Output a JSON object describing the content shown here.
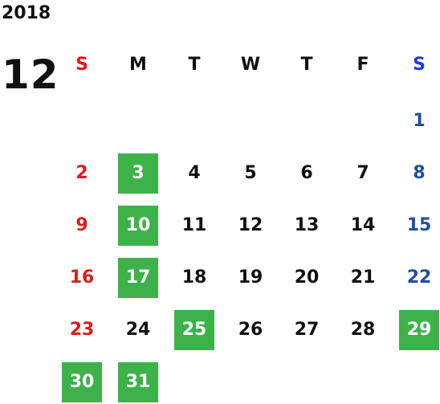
{
  "calendar": {
    "year": "2018",
    "month": "12",
    "weekday_headers": [
      "S",
      "M",
      "T",
      "W",
      "T",
      "F",
      "S"
    ],
    "days": [
      {
        "day": "1",
        "weekday": "sat",
        "row": 0,
        "highlight": false
      },
      {
        "day": "2",
        "weekday": "sun",
        "row": 1,
        "highlight": false
      },
      {
        "day": "3",
        "weekday": "mon",
        "row": 1,
        "highlight": true
      },
      {
        "day": "4",
        "weekday": "tue",
        "row": 1,
        "highlight": false
      },
      {
        "day": "5",
        "weekday": "wed",
        "row": 1,
        "highlight": false
      },
      {
        "day": "6",
        "weekday": "thu",
        "row": 1,
        "highlight": false
      },
      {
        "day": "7",
        "weekday": "fri",
        "row": 1,
        "highlight": false
      },
      {
        "day": "8",
        "weekday": "sat",
        "row": 1,
        "highlight": false
      },
      {
        "day": "9",
        "weekday": "sun",
        "row": 2,
        "highlight": false
      },
      {
        "day": "10",
        "weekday": "mon",
        "row": 2,
        "highlight": true
      },
      {
        "day": "11",
        "weekday": "tue",
        "row": 2,
        "highlight": false
      },
      {
        "day": "12",
        "weekday": "wed",
        "row": 2,
        "highlight": false
      },
      {
        "day": "13",
        "weekday": "thu",
        "row": 2,
        "highlight": false
      },
      {
        "day": "14",
        "weekday": "fri",
        "row": 2,
        "highlight": false
      },
      {
        "day": "15",
        "weekday": "sat",
        "row": 2,
        "highlight": false
      },
      {
        "day": "16",
        "weekday": "sun",
        "row": 3,
        "highlight": false
      },
      {
        "day": "17",
        "weekday": "mon",
        "row": 3,
        "highlight": true
      },
      {
        "day": "18",
        "weekday": "tue",
        "row": 3,
        "highlight": false
      },
      {
        "day": "19",
        "weekday": "wed",
        "row": 3,
        "highlight": false
      },
      {
        "day": "20",
        "weekday": "thu",
        "row": 3,
        "highlight": false
      },
      {
        "day": "21",
        "weekday": "fri",
        "row": 3,
        "highlight": false
      },
      {
        "day": "22",
        "weekday": "sat",
        "row": 3,
        "highlight": false
      },
      {
        "day": "23",
        "weekday": "sun",
        "row": 4,
        "highlight": false
      },
      {
        "day": "24",
        "weekday": "mon",
        "row": 4,
        "highlight": false
      },
      {
        "day": "25",
        "weekday": "tue",
        "row": 4,
        "highlight": true
      },
      {
        "day": "26",
        "weekday": "wed",
        "row": 4,
        "highlight": false
      },
      {
        "day": "27",
        "weekday": "thu",
        "row": 4,
        "highlight": false
      },
      {
        "day": "28",
        "weekday": "fri",
        "row": 4,
        "highlight": false
      },
      {
        "day": "29",
        "weekday": "sat",
        "row": 4,
        "highlight": true
      },
      {
        "day": "30",
        "weekday": "sun",
        "row": 5,
        "highlight": true
      },
      {
        "day": "31",
        "weekday": "mon",
        "row": 5,
        "highlight": true
      }
    ]
  },
  "colors": {
    "sunday": "#e01b1b",
    "saturday_header": "#1f3fd8",
    "saturday": "#1f4fa0",
    "weekday": "#111111",
    "highlight_bg": "#3db24a",
    "highlight_text": "#ffffff"
  }
}
